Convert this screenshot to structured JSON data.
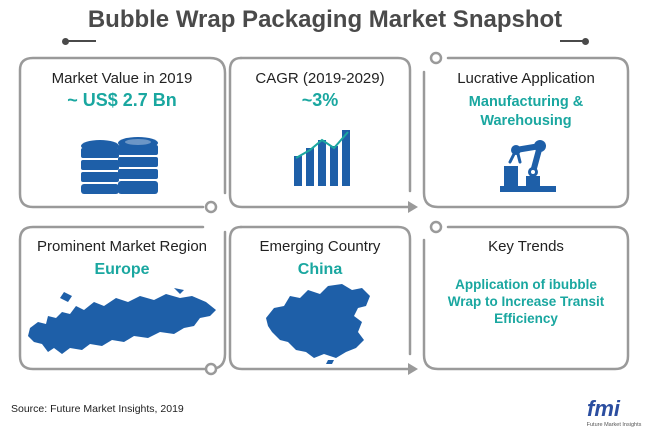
{
  "title": "Bubble Wrap Packaging Market Snapshot",
  "colors": {
    "accent": "#1aa7a0",
    "icon_blue": "#1e5fa8",
    "frame": "#9a9a9a",
    "text": "#4a4a4a"
  },
  "boxes": {
    "market_value": {
      "label": "Market Value in 2019",
      "value": "~ US$ 2.7 Bn",
      "icon": "database-coins-icon"
    },
    "cagr": {
      "label": "CAGR (2019-2029)",
      "value": "~3%",
      "icon": "bar-chart-growth-icon"
    },
    "application": {
      "label": "Lucrative Application",
      "value_line1": "Manufacturing &",
      "value_line2": "Warehousing",
      "icon": "robotic-arm-icon"
    },
    "region": {
      "label": "Prominent Market Region",
      "value": "Europe",
      "icon": "europe-map-icon"
    },
    "country": {
      "label": "Emerging Country",
      "value": "China",
      "icon": "china-map-icon"
    },
    "trends": {
      "label": "Key Trends",
      "line1": "Application of ibubble",
      "line2": "Wrap to Increase Transit",
      "line3": "Efficiency"
    }
  },
  "source": "Source: Future Market Insights, 2019",
  "logo": {
    "main": "fmi",
    "sub": "Future Market Insights"
  }
}
